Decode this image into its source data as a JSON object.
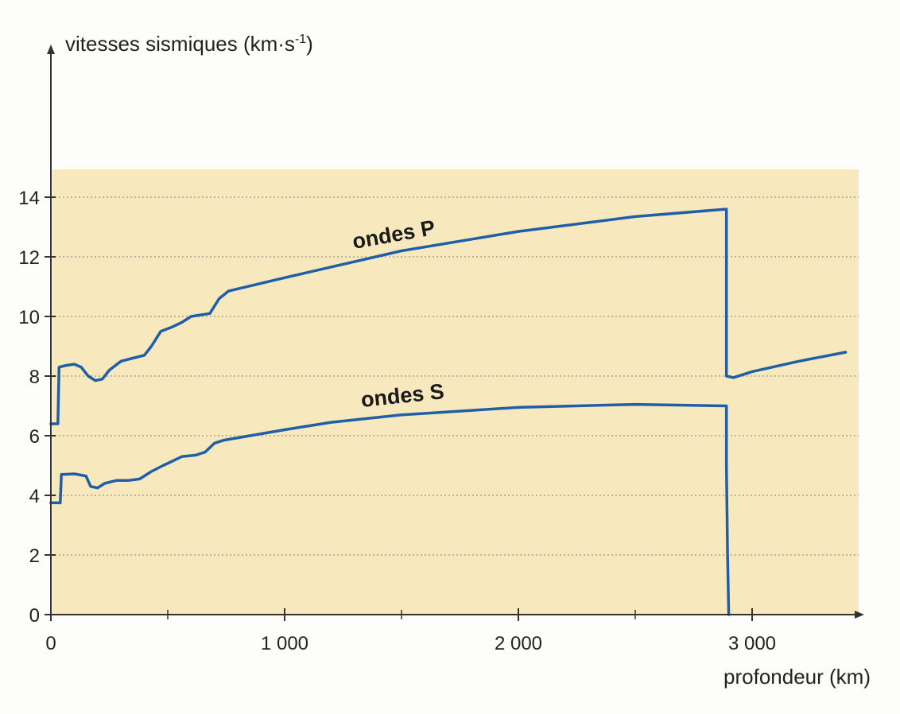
{
  "chart_data": {
    "type": "line",
    "ylabel": "vitesses sismiques (km·s",
    "ylabel_sup": "-1",
    "ylabel_close": ")",
    "xlabel": "profondeur (km)",
    "xlim": [
      0,
      3450
    ],
    "ylim": [
      0,
      14
    ],
    "x_ticks": [
      0,
      1000,
      2000,
      3000
    ],
    "x_tick_labels": [
      "0",
      "1 000",
      "2 000",
      "3 000"
    ],
    "y_ticks": [
      0,
      2,
      4,
      6,
      8,
      10,
      12,
      14
    ],
    "y_tick_labels": [
      "0",
      "2",
      "4",
      "6",
      "8",
      "10",
      "12",
      "14"
    ],
    "grid": "horizontal dotted",
    "colors": {
      "background_band": "#f7e9bd",
      "line": "#1f5fa8",
      "grid": "#9a9488",
      "axis": "#333333"
    },
    "series": [
      {
        "name": "ondes P",
        "points": [
          [
            0,
            6.4
          ],
          [
            30,
            6.4
          ],
          [
            35,
            8.3
          ],
          [
            60,
            8.35
          ],
          [
            100,
            8.4
          ],
          [
            130,
            8.3
          ],
          [
            160,
            8.0
          ],
          [
            190,
            7.85
          ],
          [
            220,
            7.9
          ],
          [
            250,
            8.2
          ],
          [
            300,
            8.5
          ],
          [
            350,
            8.6
          ],
          [
            400,
            8.7
          ],
          [
            430,
            9.0
          ],
          [
            470,
            9.5
          ],
          [
            520,
            9.65
          ],
          [
            560,
            9.8
          ],
          [
            600,
            10.0
          ],
          [
            680,
            10.1
          ],
          [
            720,
            10.6
          ],
          [
            760,
            10.85
          ],
          [
            1000,
            11.3
          ],
          [
            1500,
            12.2
          ],
          [
            2000,
            12.85
          ],
          [
            2500,
            13.35
          ],
          [
            2890,
            13.6
          ],
          [
            2890,
            8.0
          ],
          [
            2920,
            7.95
          ],
          [
            3000,
            8.15
          ],
          [
            3200,
            8.5
          ],
          [
            3400,
            8.8
          ]
        ]
      },
      {
        "name": "ondes S",
        "points": [
          [
            0,
            3.75
          ],
          [
            40,
            3.75
          ],
          [
            45,
            4.7
          ],
          [
            100,
            4.72
          ],
          [
            150,
            4.65
          ],
          [
            170,
            4.3
          ],
          [
            200,
            4.25
          ],
          [
            230,
            4.4
          ],
          [
            280,
            4.5
          ],
          [
            330,
            4.5
          ],
          [
            380,
            4.55
          ],
          [
            430,
            4.8
          ],
          [
            480,
            5.0
          ],
          [
            520,
            5.15
          ],
          [
            560,
            5.3
          ],
          [
            620,
            5.35
          ],
          [
            660,
            5.45
          ],
          [
            700,
            5.75
          ],
          [
            740,
            5.85
          ],
          [
            1000,
            6.2
          ],
          [
            1200,
            6.45
          ],
          [
            1500,
            6.7
          ],
          [
            2000,
            6.95
          ],
          [
            2500,
            7.05
          ],
          [
            2890,
            7.0
          ],
          [
            2890,
            5.0
          ],
          [
            2895,
            2.0
          ],
          [
            2900,
            0
          ]
        ]
      }
    ]
  }
}
